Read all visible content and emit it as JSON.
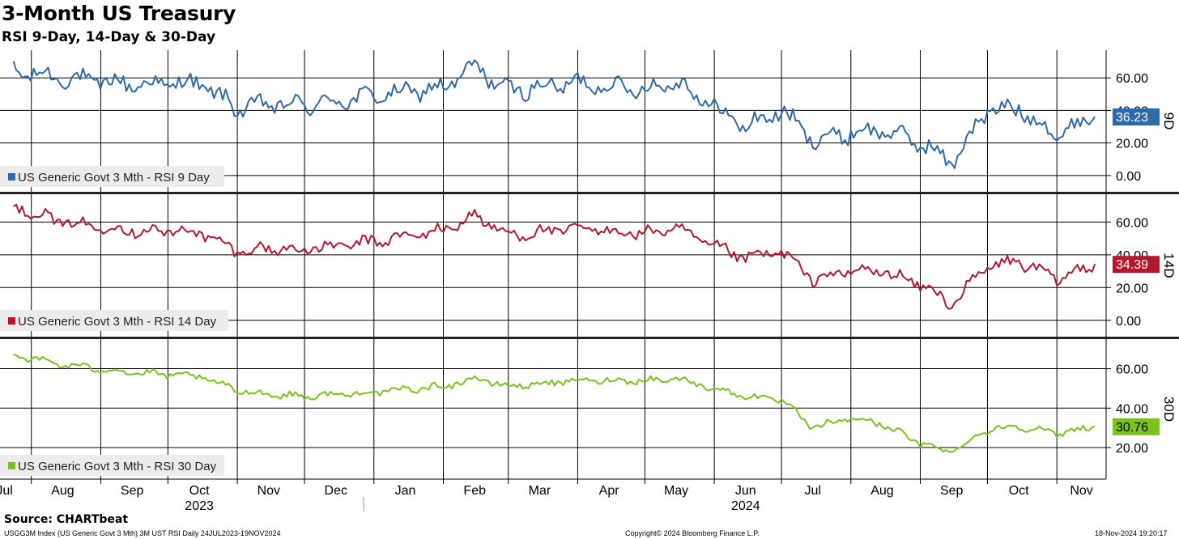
{
  "header": {
    "title": "3-Month US Treasury",
    "subtitle": "RSI 9-Day, 14-Day & 30-Day"
  },
  "footer": {
    "source": "Source: CHARTbeat",
    "index_desc": "USGG3M Index (US Generic Govt 3 Mth) 3M UST RSI  Daily 24JUL2023-19NOV2024",
    "copyright": "Copyright© 2024 Bloomberg Finance L.P.",
    "timestamp": "18-Nov-2024 19:20:17"
  },
  "colors": {
    "rsi9": "#2e6aa8",
    "rsi14": "#b4182f",
    "rsi30": "#7ac41a",
    "grid": "#000000"
  },
  "chart_data": [
    {
      "type": "line",
      "panel_label": "9D",
      "legend": "US Generic Govt 3 Mth - RSI 9 Day",
      "last_value_label": "36.23",
      "x": [
        "2023-07-24",
        "2023-08-15",
        "2023-09-15",
        "2023-10-15",
        "2023-11-01",
        "2023-11-15",
        "2023-12-01",
        "2024-01-01",
        "2024-02-01",
        "2024-02-15",
        "2024-03-01",
        "2024-04-01",
        "2024-05-01",
        "2024-05-15",
        "2024-06-01",
        "2024-06-15",
        "2024-07-01",
        "2024-07-15",
        "2024-08-01",
        "2024-08-15",
        "2024-09-01",
        "2024-09-15",
        "2024-10-01",
        "2024-10-15",
        "2024-11-01",
        "2024-11-18"
      ],
      "y": [
        64,
        60,
        56,
        57,
        41,
        44,
        43,
        49,
        54,
        67,
        52,
        57,
        53,
        58,
        42,
        30,
        40,
        22,
        26,
        28,
        20,
        8,
        40,
        41,
        25,
        36.23
      ],
      "yticks": [
        0,
        20,
        40,
        60
      ],
      "ylim": [
        -10,
        77
      ]
    },
    {
      "type": "line",
      "panel_label": "14D",
      "legend": "US Generic Govt 3 Mth - RSI 14 Day",
      "last_value_label": "34.39",
      "x": [
        "2023-07-24",
        "2023-08-15",
        "2023-09-15",
        "2023-10-15",
        "2023-11-01",
        "2023-11-15",
        "2023-12-01",
        "2024-01-01",
        "2024-02-01",
        "2024-02-15",
        "2024-03-01",
        "2024-04-01",
        "2024-05-01",
        "2024-05-15",
        "2024-06-01",
        "2024-06-15",
        "2024-07-01",
        "2024-07-15",
        "2024-08-01",
        "2024-08-15",
        "2024-09-01",
        "2024-09-15",
        "2024-10-01",
        "2024-10-15",
        "2024-11-01",
        "2024-11-18"
      ],
      "y": [
        70,
        60,
        55,
        54,
        42,
        44,
        43,
        48,
        55,
        64,
        52,
        56,
        53,
        56,
        45,
        38,
        42,
        25,
        30,
        30,
        22,
        10,
        33,
        36,
        25,
        34.39
      ],
      "yticks": [
        0,
        20,
        40,
        60
      ],
      "ylim": [
        -10,
        77
      ]
    },
    {
      "type": "line",
      "panel_label": "30D",
      "legend": "US Generic Govt 3 Mth - RSI 30 Day",
      "last_value_label": "30.76",
      "x": [
        "2023-07-24",
        "2023-08-15",
        "2023-09-15",
        "2023-10-15",
        "2023-11-01",
        "2023-11-15",
        "2023-12-01",
        "2024-01-01",
        "2024-02-01",
        "2024-02-15",
        "2024-03-01",
        "2024-04-01",
        "2024-05-01",
        "2024-05-15",
        "2024-06-01",
        "2024-06-15",
        "2024-07-01",
        "2024-07-15",
        "2024-08-01",
        "2024-08-15",
        "2024-09-01",
        "2024-09-15",
        "2024-10-01",
        "2024-10-15",
        "2024-11-01",
        "2024-11-18"
      ],
      "y": [
        67,
        62,
        58,
        56,
        49,
        47,
        46,
        48,
        51,
        55,
        51,
        54,
        54,
        55,
        50,
        46,
        44,
        30,
        35,
        32,
        22,
        18,
        29,
        31,
        27,
        30.76
      ],
      "yticks": [
        20,
        40,
        60
      ],
      "ylim": [
        4,
        75
      ]
    }
  ],
  "x_axis": {
    "months": [
      {
        "label": "Jul",
        "date": "2023-07-20"
      },
      {
        "label": "Aug",
        "date": "2023-08-15"
      },
      {
        "label": "Sep",
        "date": "2023-09-15"
      },
      {
        "label": "Oct",
        "date": "2023-10-15"
      },
      {
        "label": "Nov",
        "date": "2023-11-15"
      },
      {
        "label": "Dec",
        "date": "2023-12-15"
      },
      {
        "label": "Jan",
        "date": "2024-01-15"
      },
      {
        "label": "Feb",
        "date": "2024-02-15"
      },
      {
        "label": "Mar",
        "date": "2024-03-15"
      },
      {
        "label": "Apr",
        "date": "2024-04-15"
      },
      {
        "label": "May",
        "date": "2024-05-15"
      },
      {
        "label": "Jun",
        "date": "2024-06-15"
      },
      {
        "label": "Jul",
        "date": "2024-07-15"
      },
      {
        "label": "Aug",
        "date": "2024-08-15"
      },
      {
        "label": "Sep",
        "date": "2024-09-15"
      },
      {
        "label": "Oct",
        "date": "2024-10-15"
      },
      {
        "label": "Nov",
        "date": "2024-11-12"
      }
    ],
    "years": [
      {
        "label": "2023",
        "date": "2023-10-15"
      },
      {
        "label": "2024",
        "date": "2024-06-15"
      }
    ],
    "start": "2023-07-18",
    "end": "2024-11-23"
  }
}
